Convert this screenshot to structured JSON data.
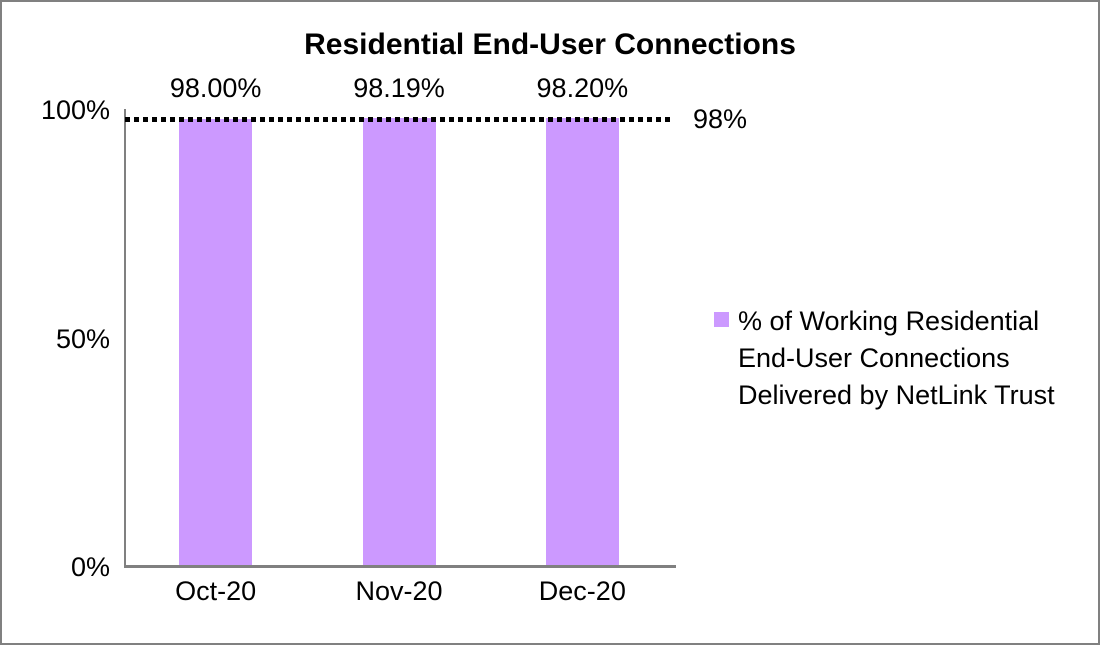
{
  "title": "Residential End-User Connections",
  "chart_data": {
    "type": "bar",
    "categories": [
      "Oct-20",
      "Nov-20",
      "Dec-20"
    ],
    "series": [
      {
        "name": "% of Working Residential End-User Connections Delivered by NetLink Trust",
        "values": [
          98.0,
          98.19,
          98.2
        ]
      }
    ],
    "data_labels": [
      "98.00%",
      "98.19%",
      "98.20%"
    ],
    "xlabel": "",
    "ylabel": "",
    "ylim": [
      0,
      100
    ],
    "yticks": [
      {
        "value": 0,
        "label": "0%"
      },
      {
        "value": 50,
        "label": "50%"
      },
      {
        "value": 100,
        "label": "100%"
      }
    ],
    "target_line": {
      "value": 98,
      "label": "98%",
      "style": "dotted",
      "color": "#000000"
    },
    "bar_color": "#CC99FF",
    "grid": false,
    "legend_position": "right"
  },
  "legend": {
    "swatch_color": "#CC99FF",
    "lines": [
      "% of Working Residential",
      "End-User Connections",
      "Delivered by NetLink Trust"
    ]
  },
  "colors": {
    "bar": "#CC99FF",
    "axis": "#808080",
    "border": "#808080",
    "target_line": "#000000",
    "text": "#000000"
  }
}
